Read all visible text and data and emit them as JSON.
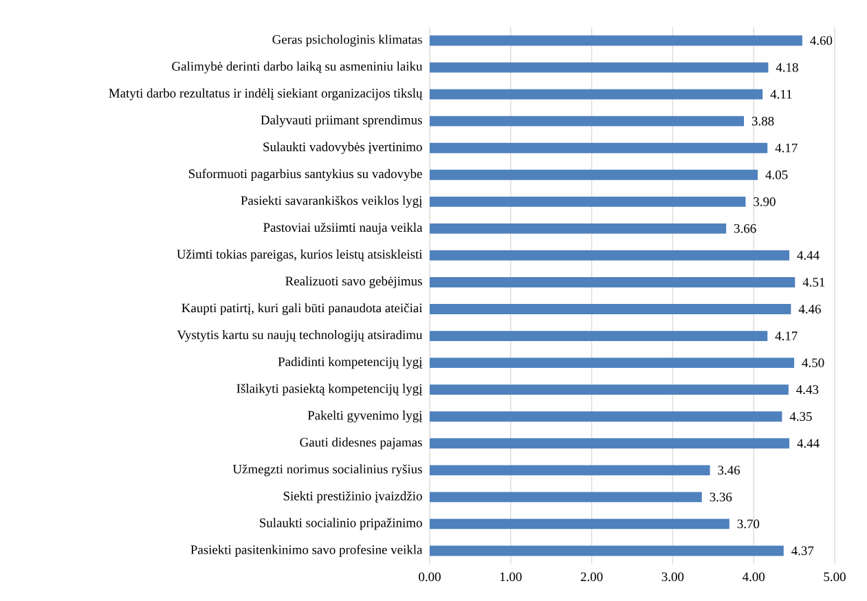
{
  "chart_data": {
    "type": "bar",
    "orientation": "horizontal",
    "color": "#4f81bd",
    "grid": "x",
    "categories": [
      "Geras psichologinis klimatas",
      "Galimybė derinti darbo laiką su asmeniniu laiku",
      "Matyti darbo rezultatus ir indėlį siekiant organizacijos tikslų",
      "Dalyvauti priimant sprendimus",
      "Sulaukti vadovybės įvertinimo",
      "Suformuoti pagarbius santykius su vadovybe",
      "Pasiekti savarankiškos veiklos lygį",
      "Pastoviai užsiimti nauja veikla",
      "Užimti tokias pareigas, kurios leistų atsiskleisti",
      "Realizuoti savo gebėjimus",
      "Kaupti patirtį, kuri gali būti panaudota ateičiai",
      "Vystytis kartu su naujų technologijų atsiradimu",
      "Padidinti kompetencijų lygį",
      "Išlaikyti pasiektą kompetencijų lygį",
      "Pakelti gyvenimo lygį",
      "Gauti didesnes pajamas",
      "Užmegzti norimus socialinius ryšius",
      "Siekti prestižinio įvaizdžio",
      "Sulaukti socialinio pripažinimo",
      "Pasiekti pasitenkinimo savo profesine veikla"
    ],
    "values": [
      4.6,
      4.18,
      4.11,
      3.88,
      4.17,
      4.05,
      3.9,
      3.66,
      4.44,
      4.51,
      4.46,
      4.17,
      4.5,
      4.43,
      4.35,
      4.44,
      3.46,
      3.36,
      3.7,
      4.37
    ],
    "value_labels": [
      "4.60",
      "4.18",
      "4.11",
      "3.88",
      "4.17",
      "4.05",
      "3.90",
      "3.66",
      "4.44",
      "4.51",
      "4.46",
      "4.17",
      "4.50",
      "4.43",
      "4.35",
      "4.44",
      "3.46",
      "3.36",
      "3.70",
      "4.37"
    ],
    "xlim": [
      0,
      5
    ],
    "xticks": [
      {
        "value": 0,
        "label": "0.00"
      },
      {
        "value": 1,
        "label": "1.00"
      },
      {
        "value": 2,
        "label": "2.00"
      },
      {
        "value": 3,
        "label": "3.00"
      },
      {
        "value": 4,
        "label": "4.00"
      },
      {
        "value": 5,
        "label": "5.00"
      }
    ]
  }
}
